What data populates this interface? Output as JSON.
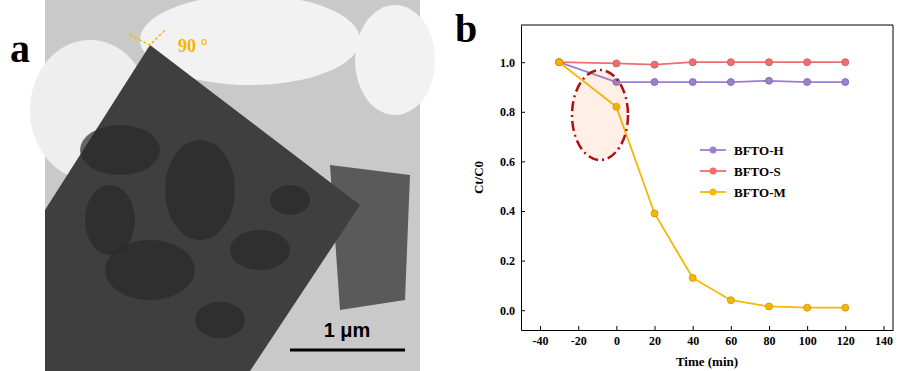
{
  "micrograph": {
    "panel_label": "a",
    "angle_label": "90 °",
    "scale_bar_label": "1 μm"
  },
  "chart_data": {
    "type": "line",
    "panel_label": "b",
    "x_label": "Time (min)",
    "y_label": "Ct/C0",
    "x": [
      -30,
      0,
      20,
      40,
      60,
      80,
      100,
      120
    ],
    "series": [
      {
        "name": "BFTO-H",
        "color": "#9b7fd0",
        "marker": "circle",
        "values": [
          1.0,
          0.92,
          0.92,
          0.92,
          0.92,
          0.925,
          0.92,
          0.92
        ]
      },
      {
        "name": "BFTO-S",
        "color": "#f26d6d",
        "marker": "circle",
        "values": [
          1.0,
          0.995,
          0.99,
          1.0,
          1.0,
          1.0,
          1.0,
          1.0
        ]
      },
      {
        "name": "BFTO-M",
        "color": "#f5b700",
        "marker": "circle",
        "values": [
          1.0,
          0.82,
          0.39,
          0.13,
          0.04,
          0.015,
          0.01,
          0.01
        ]
      }
    ],
    "xlim": [
      -50,
      145
    ],
    "xticks": [
      -40,
      -20,
      0,
      20,
      40,
      60,
      80,
      100,
      120,
      140
    ],
    "ylim": [
      -0.08,
      1.15
    ],
    "yticks": [
      {
        "value": 0,
        "label": "0.0"
      },
      {
        "value": 0.2,
        "label": "0.2"
      },
      {
        "value": 0.4,
        "label": "0.4"
      },
      {
        "value": 0.6,
        "label": "0.6"
      },
      {
        "value": 0.8,
        "label": "0.8"
      },
      {
        "value": 1.0,
        "label": "1.0"
      }
    ],
    "legend": "right",
    "grid": false
  }
}
